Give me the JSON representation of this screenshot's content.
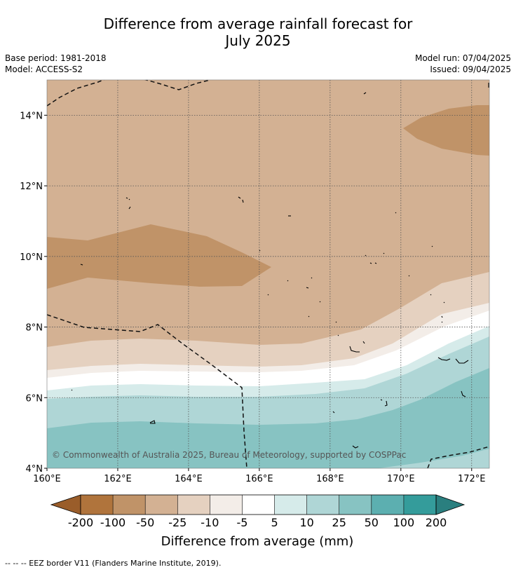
{
  "title": {
    "line1": "Difference from average rainfall forecast for",
    "line2": "July 2025"
  },
  "meta_left": {
    "base_period": "Base period: 1981-2018",
    "model": "Model: ACCESS-S2"
  },
  "meta_right": {
    "model_run": "Model run: 07/04/2025",
    "issued": "Issued: 09/04/2025"
  },
  "map": {
    "lon_range": [
      160,
      172.5
    ],
    "lat_range": [
      4,
      15
    ],
    "x_ticks": [
      "160°E",
      "162°E",
      "164°E",
      "166°E",
      "168°E",
      "170°E",
      "172°E"
    ],
    "y_ticks": [
      "4°N",
      "6°N",
      "8°N",
      "10°N",
      "12°N",
      "14°N"
    ],
    "copyright": "© Commonwealth of Australia 2025, Bureau of Meteorology, supported by COSPPac",
    "grid": true
  },
  "colorbar": {
    "title": "Difference from average (mm)",
    "labels": [
      "-200",
      "-100",
      "-50",
      "-25",
      "-10",
      "-5",
      "5",
      "10",
      "25",
      "50",
      "100",
      "200"
    ],
    "colors": [
      "#9a5d2a",
      "#b0743c",
      "#c09368",
      "#d3b193",
      "#e5d1c0",
      "#f3ede8",
      "#ffffff",
      "#d6ebea",
      "#afd6d6",
      "#87c3c2",
      "#5cafb0",
      "#349c9b",
      "#2a7f7f"
    ]
  },
  "footer": {
    "legend": "--  --  -- EEZ border V11 (Flanders Marine Institute, 2019)."
  }
}
